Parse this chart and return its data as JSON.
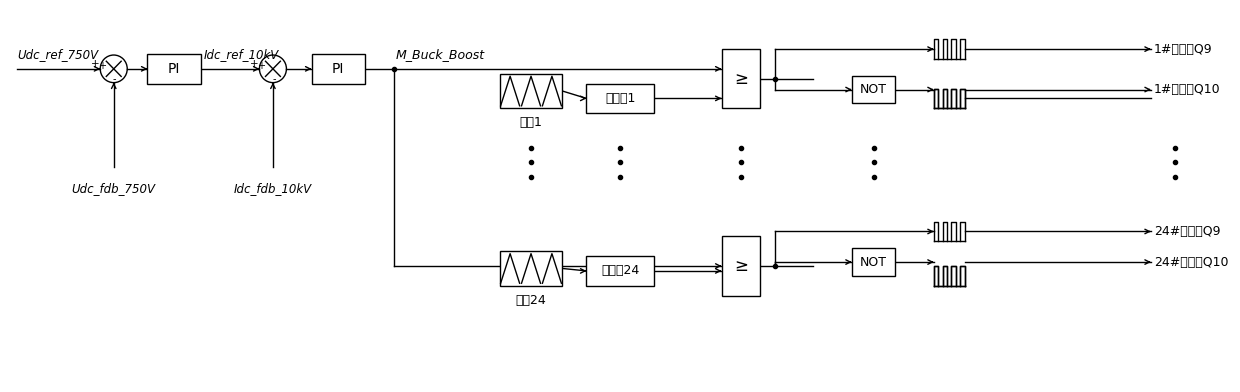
{
  "bg_color": "#ffffff",
  "line_color": "#000000",
  "fig_width": 12.4,
  "fig_height": 3.92,
  "labels": {
    "udc_ref": "Udc_ref_750V",
    "udc_fdb": "Udc_fdb_750V",
    "idc_ref": "Idc_ref_10kV",
    "idc_fdb": "Idc_fdb_10kV",
    "m_buck_boost": "M_Buck_Boost",
    "carrier1": "载波1",
    "carrier24": "载波24",
    "phase1": "移相角1",
    "phase24": "移相角24",
    "q9_1": "1#模组的Q9",
    "q10_1": "1#模组的Q10",
    "q9_24": "24#模组的Q9",
    "q10_24": "24#模组的Q10",
    "pi": "PI",
    "not_lbl": "NOT",
    "ge": "≥"
  }
}
